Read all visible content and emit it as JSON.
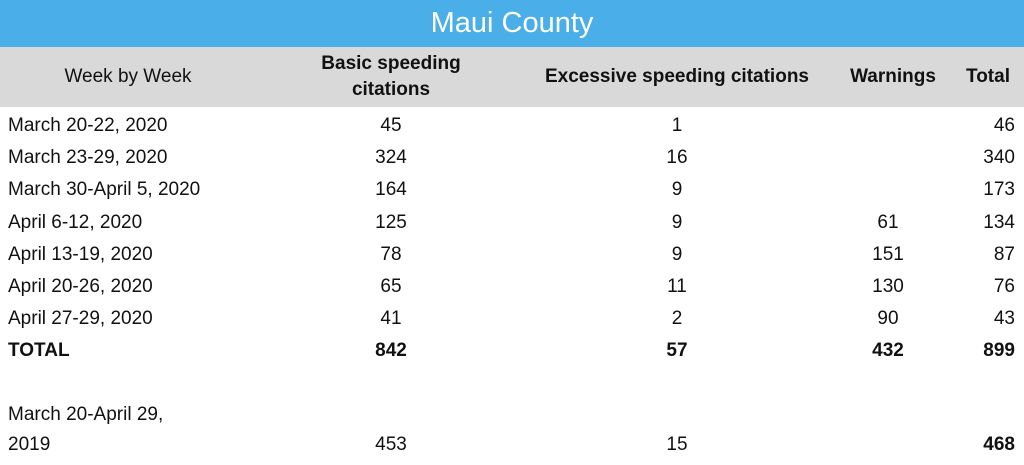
{
  "title": "Maui County",
  "table": {
    "headers": [
      "Week by Week",
      "Basic speeding citations",
      "Excessive speeding citations",
      "Warnings",
      "Total"
    ],
    "rows": [
      [
        "March 20-22, 2020",
        45,
        1,
        null,
        46
      ],
      [
        "March 23-29, 2020",
        324,
        16,
        null,
        340
      ],
      [
        "March 30-April 5, 2020",
        164,
        9,
        null,
        173
      ],
      [
        "April 6-12, 2020",
        125,
        9,
        61,
        134
      ],
      [
        "April 13-19, 2020",
        78,
        9,
        151,
        87
      ],
      [
        "April 20-26, 2020",
        65,
        11,
        130,
        76
      ],
      [
        "April 27-29, 2020",
        41,
        2,
        90,
        43
      ]
    ],
    "total_row": [
      "TOTAL",
      842,
      57,
      432,
      899
    ],
    "comparison_row": [
      [
        "March 20-April 29,",
        "2019"
      ],
      453,
      15,
      null,
      468
    ]
  }
}
